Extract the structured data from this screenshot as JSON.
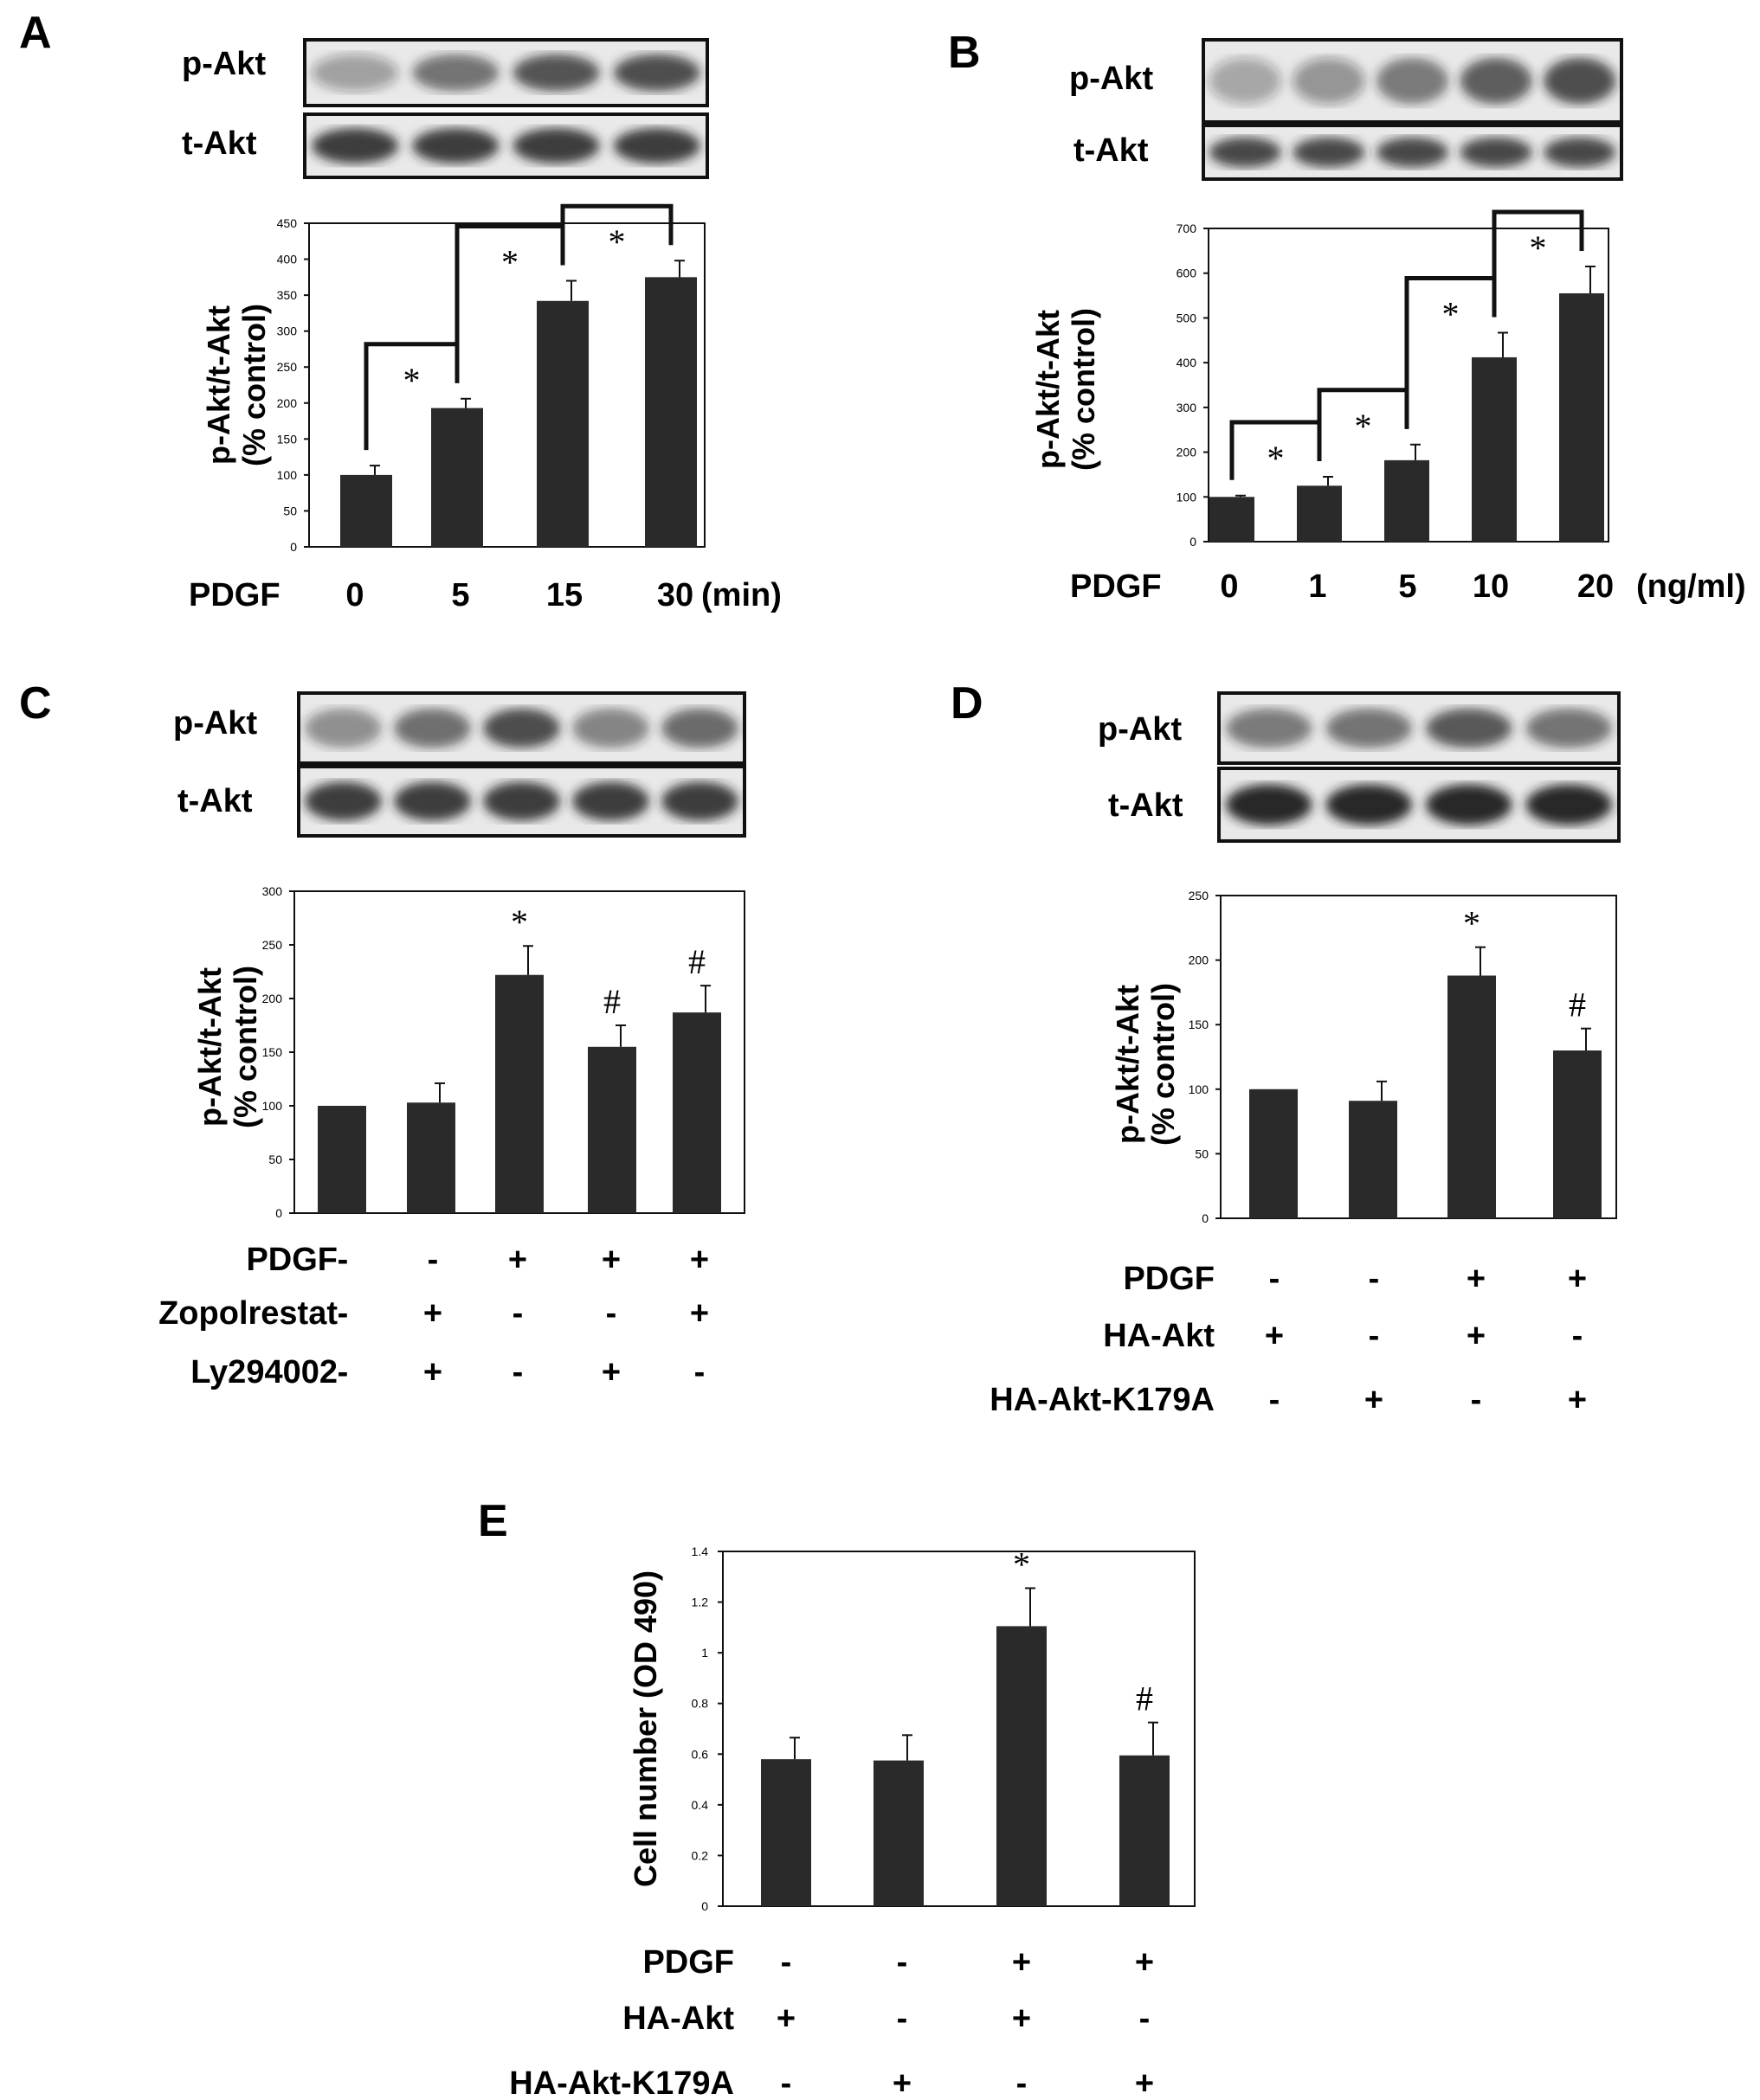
{
  "chart_data": [
    {
      "panel": "A",
      "type": "bar",
      "blots": [
        "p-Akt",
        "t-Akt"
      ],
      "ylabel": "p-Akt/t-Akt (% control)",
      "ylim": [
        0,
        450
      ],
      "yticks": [
        "0",
        "50",
        "100",
        "150",
        "200",
        "250",
        "300",
        "350",
        "400",
        "450"
      ],
      "treatment_label": "PDGF",
      "categories": [
        "0",
        "5",
        "15",
        "30"
      ],
      "unit": "(min)",
      "values": [
        100,
        193,
        342,
        375
      ],
      "errors": [
        13,
        13,
        28,
        23
      ],
      "brackets": [
        {
          "from": 0,
          "to": 1,
          "label": "*"
        },
        {
          "from": 1,
          "to": 2,
          "label": "*"
        },
        {
          "from": 2,
          "to": 3,
          "label": "*"
        }
      ]
    },
    {
      "panel": "B",
      "type": "bar",
      "blots": [
        "p-Akt",
        "t-Akt"
      ],
      "ylabel": "p-Akt/t-Akt (% control)",
      "ylim": [
        0,
        700
      ],
      "yticks": [
        "0",
        "100",
        "200",
        "300",
        "400",
        "500",
        "600",
        "700"
      ],
      "treatment_label": "PDGF",
      "categories": [
        "0",
        "1",
        "5",
        "10",
        "20"
      ],
      "unit": "(ng/ml)",
      "values": [
        100,
        125,
        182,
        412,
        555
      ],
      "errors": [
        3,
        20,
        35,
        55,
        60
      ],
      "brackets": [
        {
          "from": 0,
          "to": 1,
          "label": "*"
        },
        {
          "from": 1,
          "to": 2,
          "label": "*"
        },
        {
          "from": 2,
          "to": 3,
          "label": "*"
        },
        {
          "from": 3,
          "to": 4,
          "label": "*"
        }
      ]
    },
    {
      "panel": "C",
      "type": "bar",
      "blots": [
        "p-Akt",
        "t-Akt"
      ],
      "ylabel": "p-Akt/t-Akt (% control)",
      "ylim": [
        0,
        300
      ],
      "yticks": [
        "0",
        "50",
        "100",
        "150",
        "200",
        "250",
        "300"
      ],
      "values": [
        100,
        103,
        222,
        155,
        187
      ],
      "errors": [
        0,
        18,
        27,
        20,
        25
      ],
      "marks": [
        "",
        "",
        "*",
        "#",
        "#"
      ],
      "conditions": [
        {
          "name": "PDGF",
          "signs": [
            "-",
            "-",
            "+",
            "+",
            "+"
          ]
        },
        {
          "name": "Zopolrestat",
          "signs": [
            "-",
            "+",
            "-",
            "-",
            "+"
          ]
        },
        {
          "name": "Ly294002",
          "signs": [
            "-",
            "+",
            "-",
            "+",
            "-"
          ]
        }
      ]
    },
    {
      "panel": "D",
      "type": "bar",
      "blots": [
        "p-Akt",
        "t-Akt"
      ],
      "ylabel": "p-Akt/t-Akt (% control)",
      "ylim": [
        0,
        250
      ],
      "yticks": [
        "0",
        "50",
        "100",
        "150",
        "200",
        "250"
      ],
      "values": [
        100,
        91,
        188,
        130
      ],
      "errors": [
        0,
        15,
        22,
        17
      ],
      "marks": [
        "",
        "",
        "*",
        "#"
      ],
      "conditions": [
        {
          "name": "PDGF",
          "signs": [
            "-",
            "-",
            "+",
            "+"
          ]
        },
        {
          "name": "HA-Akt",
          "signs": [
            "+",
            "-",
            "+",
            "-"
          ]
        },
        {
          "name": "HA-Akt-K179A",
          "signs": [
            "-",
            "+",
            "-",
            "+"
          ]
        }
      ]
    },
    {
      "panel": "E",
      "type": "bar",
      "ylabel": "Cell number (OD 490)",
      "ylim": [
        0,
        1.4
      ],
      "yticks": [
        "0",
        "0.2",
        "0.4",
        "0.6",
        "0.8",
        "1",
        "1.2",
        "1.4"
      ],
      "values": [
        0.58,
        0.575,
        1.105,
        0.595
      ],
      "errors": [
        0.085,
        0.1,
        0.15,
        0.13
      ],
      "marks": [
        "",
        "",
        "*",
        "#"
      ],
      "conditions": [
        {
          "name": "PDGF",
          "signs": [
            "-",
            "-",
            "+",
            "+"
          ]
        },
        {
          "name": "HA-Akt",
          "signs": [
            "+",
            "-",
            "+",
            "-"
          ]
        },
        {
          "name": "HA-Akt-K179A",
          "signs": [
            "-",
            "+",
            "-",
            "+"
          ]
        }
      ]
    }
  ]
}
